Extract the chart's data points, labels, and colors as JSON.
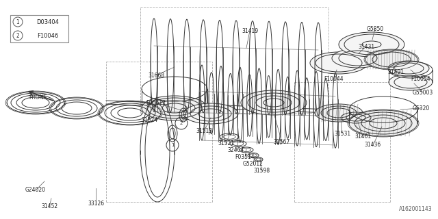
{
  "bg_color": "#ffffff",
  "line_color": "#333333",
  "diagram_id": "A162001143",
  "legend": [
    {
      "num": "1",
      "code": "D03404"
    },
    {
      "num": "2",
      "code": "F10046"
    }
  ]
}
